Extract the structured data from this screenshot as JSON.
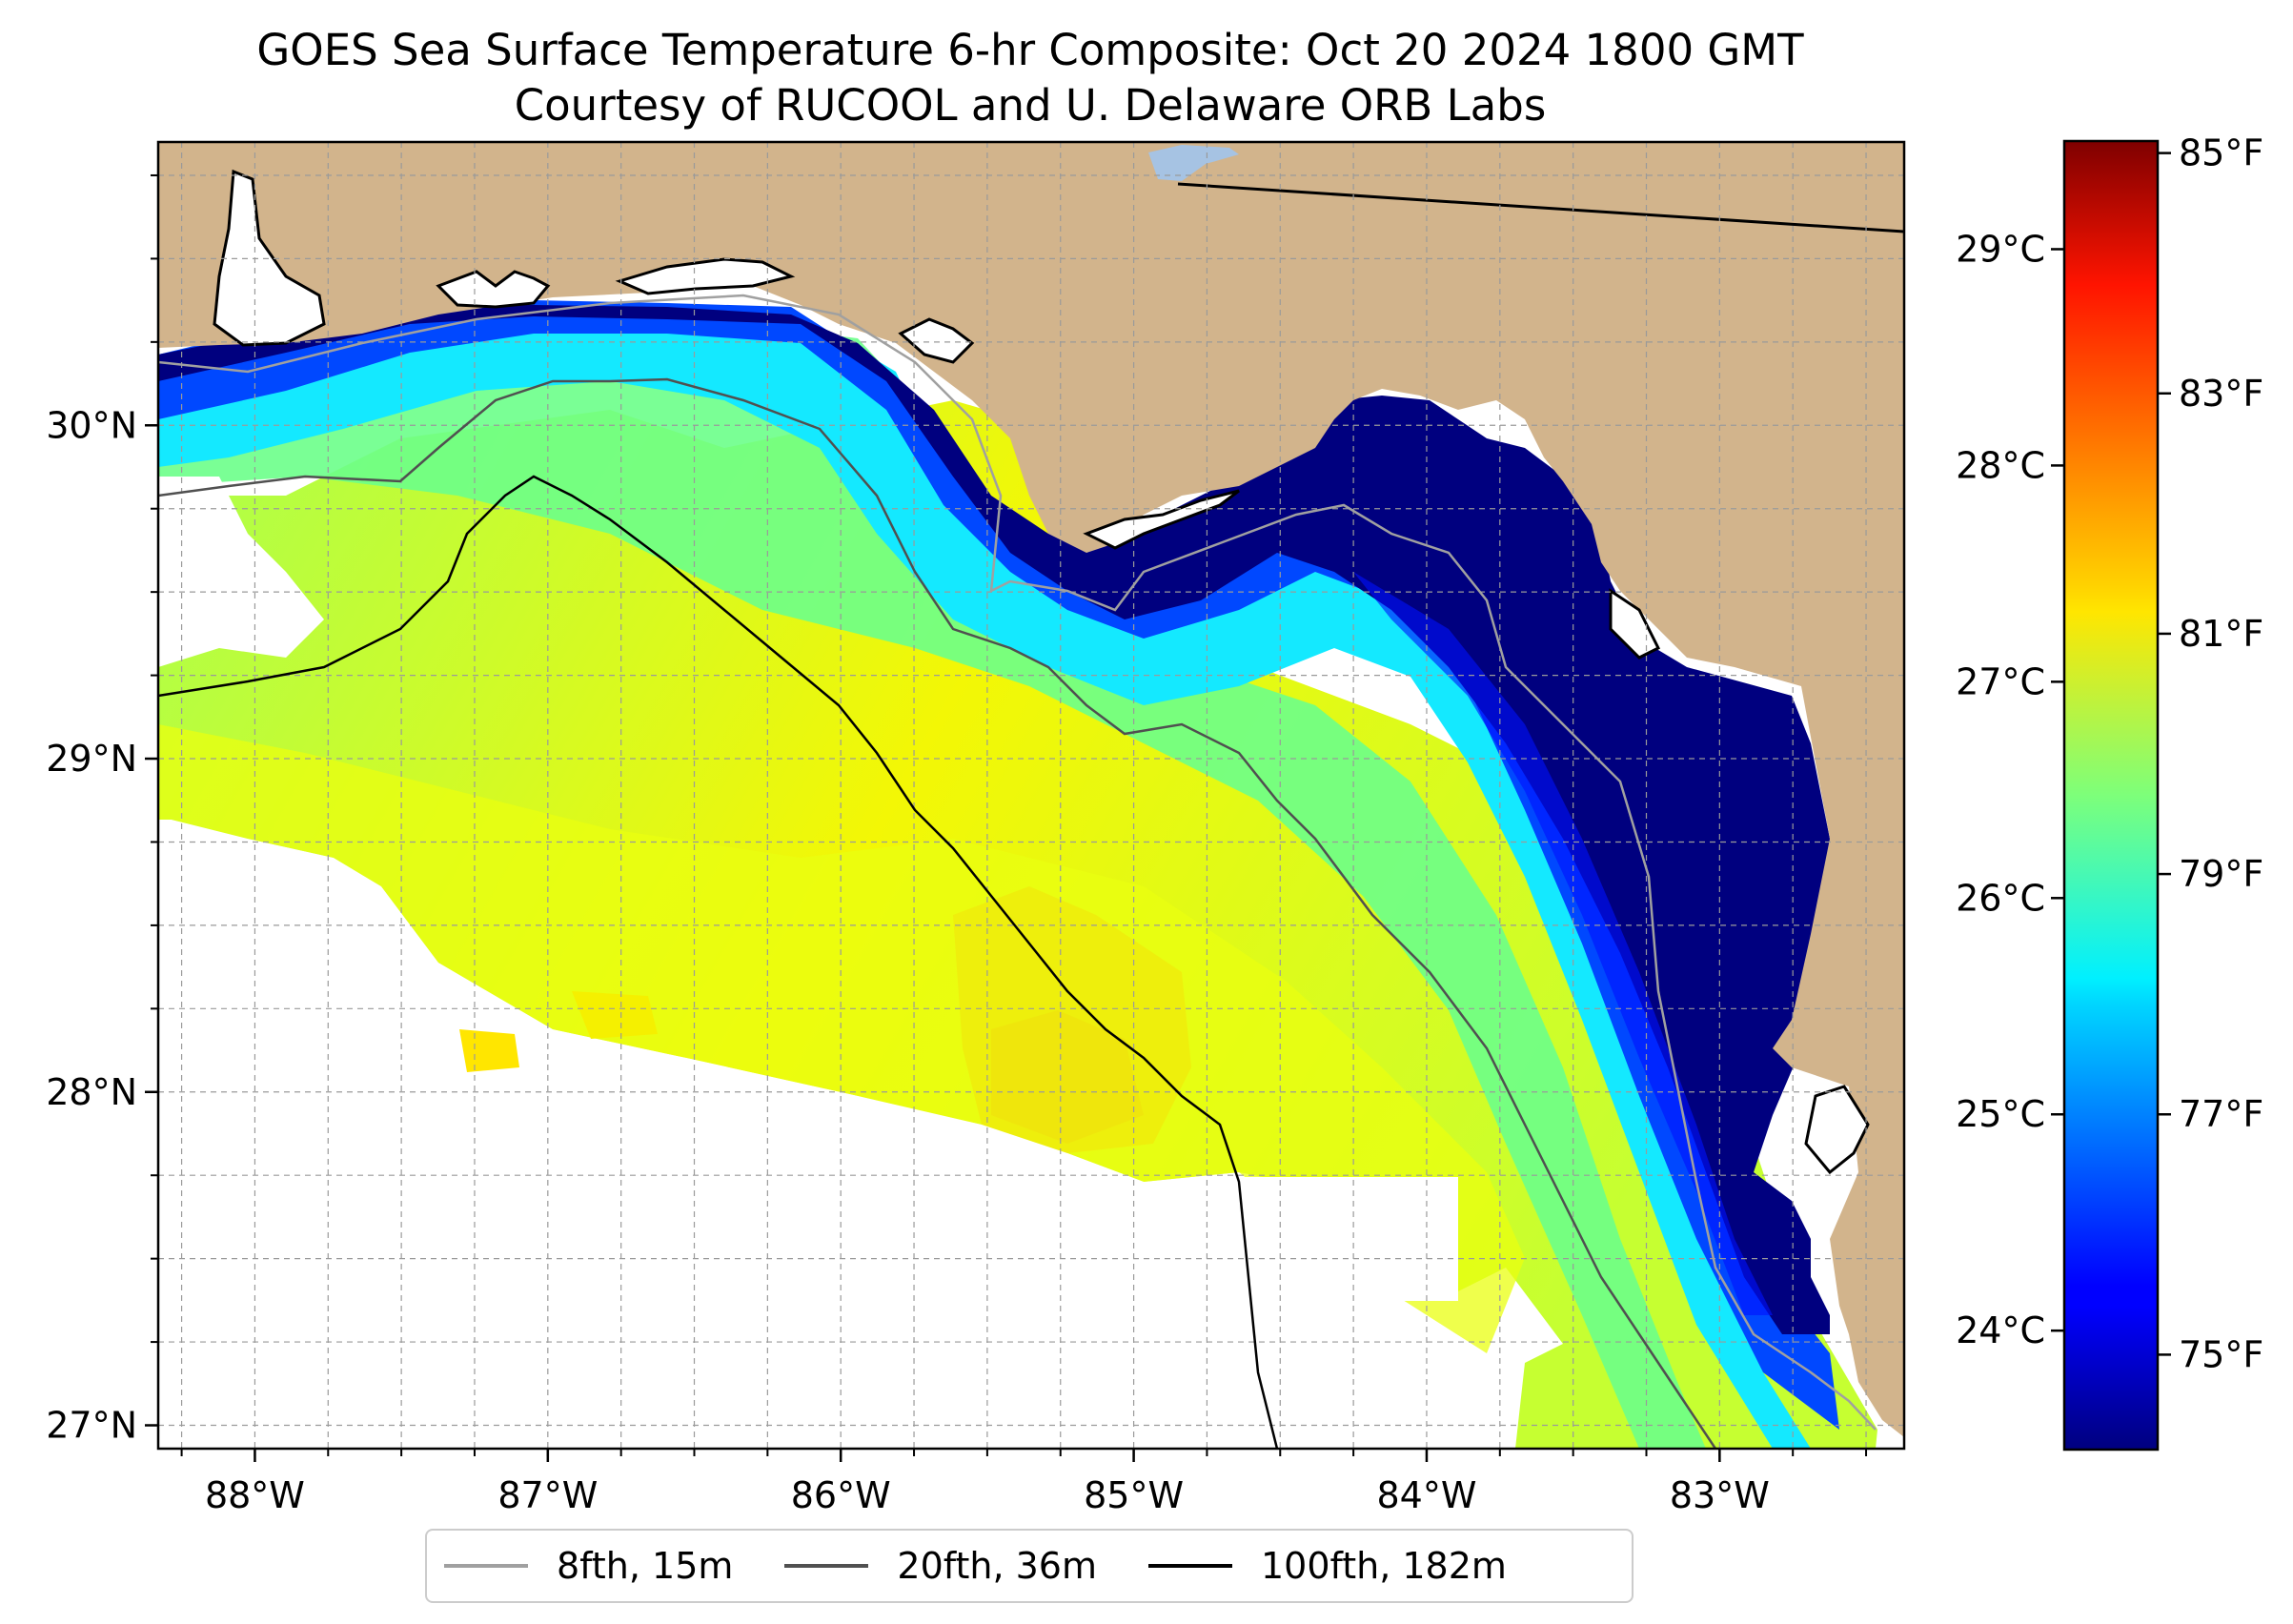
{
  "title": {
    "line1": "GOES Sea Surface Temperature 6-hr Composite: Oct 20 2024 1800 GMT",
    "line2": "Courtesy of RUCOOL and U. Delaware ORB Labs"
  },
  "map": {
    "lon_range": [
      -88.33,
      -82.37
    ],
    "lat_range": [
      26.93,
      30.85
    ],
    "lon_ticks": [
      {
        "value": -88,
        "label": "88°W"
      },
      {
        "value": -87,
        "label": "87°W"
      },
      {
        "value": -86,
        "label": "86°W"
      },
      {
        "value": -85,
        "label": "85°W"
      },
      {
        "value": -84,
        "label": "84°W"
      },
      {
        "value": -83,
        "label": "83°W"
      }
    ],
    "lat_ticks": [
      {
        "value": 27,
        "label": "27°N"
      },
      {
        "value": 28,
        "label": "28°N"
      },
      {
        "value": 29,
        "label": "29°N"
      },
      {
        "value": 30,
        "label": "30°N"
      }
    ],
    "grid": true,
    "colors": {
      "land": "#d2b48c",
      "coast": "#000000",
      "gridline": "#9a9a9a",
      "inland_water": "#a6c3e3"
    }
  },
  "colorbar": {
    "colormap": "jet",
    "range_c": [
      23.45,
      29.5
    ],
    "celsius_ticks": [
      {
        "value": 24,
        "label": "24°C"
      },
      {
        "value": 25,
        "label": "25°C"
      },
      {
        "value": 26,
        "label": "26°C"
      },
      {
        "value": 27,
        "label": "27°C"
      },
      {
        "value": 28,
        "label": "28°C"
      },
      {
        "value": 29,
        "label": "29°C"
      }
    ],
    "fahrenheit_ticks": [
      {
        "value": 75,
        "label": "75°F"
      },
      {
        "value": 77,
        "label": "77°F"
      },
      {
        "value": 79,
        "label": "79°F"
      },
      {
        "value": 81,
        "label": "81°F"
      },
      {
        "value": 83,
        "label": "83°F"
      },
      {
        "value": 85,
        "label": "85°F"
      }
    ]
  },
  "legend": {
    "placement": "bottom-center",
    "items": [
      {
        "label": "8fth, 15m",
        "color": "#a0a0a0"
      },
      {
        "label": "20fth, 36m",
        "color": "#505050"
      },
      {
        "label": "100fth, 182m",
        "color": "#000000"
      }
    ]
  }
}
